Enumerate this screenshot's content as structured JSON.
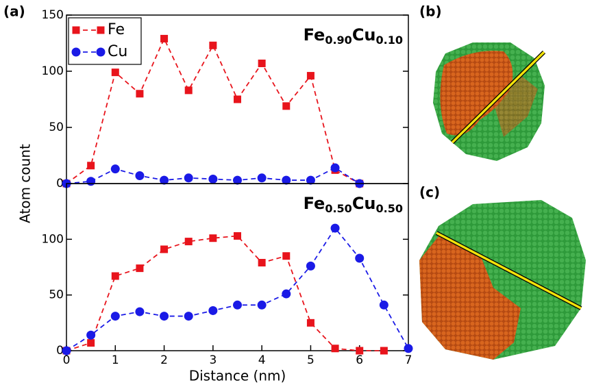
{
  "panel_labels": [
    "(a)",
    "(b)",
    "(c)"
  ],
  "ylabel": "Atom count",
  "chart_data": [
    {
      "type": "line",
      "annotation": [
        "Fe",
        "0.90",
        "Cu",
        "0.10"
      ],
      "x": [
        0,
        0.5,
        1,
        1.5,
        2,
        2.5,
        3,
        3.5,
        4,
        4.5,
        5,
        5.5,
        6
      ],
      "xlim": [
        0,
        7
      ],
      "ylim": [
        0,
        150
      ],
      "yticks": [
        0,
        50,
        100,
        150
      ],
      "legend": "upper left",
      "series": [
        {
          "name": "Fe",
          "color": "#e8141c",
          "marker": "square",
          "values": [
            0,
            16,
            99,
            80,
            129,
            83,
            123,
            75,
            107,
            69,
            96,
            12,
            0
          ]
        },
        {
          "name": "Cu",
          "color": "#1a1ae6",
          "marker": "circle",
          "values": [
            0,
            2,
            13,
            7,
            3,
            5,
            4,
            3,
            5,
            3,
            3,
            14,
            0
          ]
        }
      ]
    },
    {
      "type": "line",
      "annotation": [
        "Fe",
        "0.50",
        "Cu",
        "0.50"
      ],
      "xlabel": "Distance (nm)",
      "x": [
        0,
        0.5,
        1,
        1.5,
        2,
        2.5,
        3,
        3.5,
        4,
        4.5,
        5,
        5.5,
        6,
        6.5,
        7
      ],
      "xlim": [
        0,
        7
      ],
      "xticks": [
        0,
        1,
        2,
        3,
        4,
        5,
        6,
        7
      ],
      "ylim": [
        0,
        150
      ],
      "yticks": [
        0,
        50,
        100
      ],
      "series": [
        {
          "color": "#e8141c",
          "marker": "square",
          "values": [
            0,
            7,
            67,
            74,
            91,
            98,
            101,
            103,
            79,
            85,
            25,
            2,
            0,
            0,
            null
          ]
        },
        {
          "color": "#1a1ae6",
          "marker": "circle",
          "values": [
            0,
            14,
            31,
            35,
            31,
            31,
            36,
            41,
            41,
            51,
            76,
            110,
            83,
            41,
            2
          ]
        }
      ]
    }
  ]
}
